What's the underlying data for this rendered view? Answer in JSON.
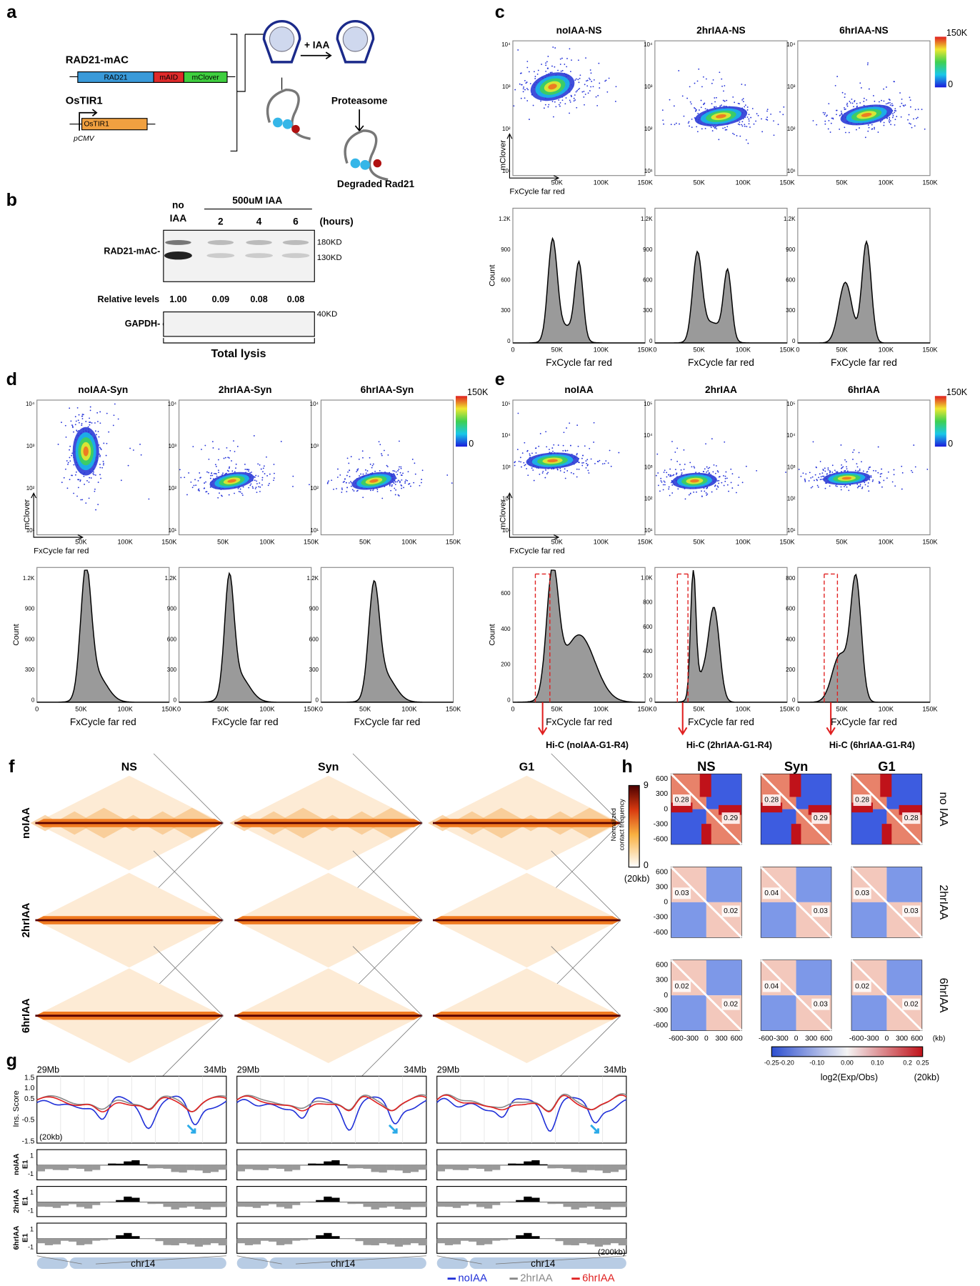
{
  "panel_a": {
    "label": "a",
    "construct": "RAD21-mAC",
    "segments": [
      "RAD21",
      "mAID",
      "mClover"
    ],
    "gene": "OsTIR1",
    "box": "OsTIR1",
    "promoter": "pCMV",
    "treatment": "+ IAA",
    "proteasome": "Proteasome",
    "result": "Degraded Rad21"
  },
  "panel_b": {
    "label": "b",
    "no_iaa": [
      "no",
      "IAA"
    ],
    "treatment": "500uM IAA",
    "times": [
      "2",
      "4",
      "6"
    ],
    "unit": "(hours)",
    "band_label": "RAD21-mAC-",
    "markers": [
      "180KD",
      "130KD"
    ],
    "relative_label": "Relative levels",
    "relative": [
      "1.00",
      "0.09",
      "0.08",
      "0.08"
    ],
    "control": "GAPDH-",
    "control_marker": "40KD",
    "footer": "Total lysis"
  },
  "panel_c": {
    "label": "c",
    "titles": [
      "noIAA-NS",
      "2hrIAA-NS",
      "6hrIAA-NS"
    ],
    "colorbar": [
      "150K",
      "0"
    ],
    "y_label": "mClover",
    "x_label": "FxCycle far red",
    "scatter_yticks": [
      "10⁴",
      "10³",
      "10²",
      "10¹"
    ],
    "scatter_xticks": [
      "50K",
      "100K",
      "150K"
    ],
    "hist_y_label": "Count",
    "hist_yticks": [
      [
        "0",
        "300",
        "600",
        "900",
        "1.2K"
      ],
      [
        "0",
        "300",
        "600",
        "900",
        "1.2K"
      ],
      [
        "0",
        "300",
        "600",
        "900",
        "1.2K"
      ]
    ],
    "hist_xticks": [
      "0",
      "50K",
      "100K",
      "150K"
    ],
    "hist_x_label": "FxCycle far red"
  },
  "panel_d": {
    "label": "d",
    "titles": [
      "noIAA-Syn",
      "2hrIAA-Syn",
      "6hrIAA-Syn"
    ],
    "colorbar": [
      "150K",
      "0"
    ],
    "y_label": "mClover",
    "x_label": "FxCycle far red",
    "scatter_yticks": [
      "10⁴",
      "10³",
      "10²",
      "10¹"
    ],
    "scatter_xticks": [
      "50K",
      "100K",
      "150K"
    ],
    "hist_y_label": "Count",
    "hist_yticks": [
      [
        "0",
        "300",
        "600",
        "900",
        "1.2K"
      ],
      [
        "0",
        "300",
        "600",
        "900",
        "1.2K"
      ],
      [
        "0",
        "300",
        "600",
        "900",
        "1.2K"
      ]
    ],
    "hist_xticks": [
      "0",
      "50K",
      "100K",
      "150K"
    ],
    "hist_x_label": "FxCycle far red"
  },
  "panel_e": {
    "label": "e",
    "titles": [
      "noIAA",
      "2hrIAA",
      "6hrIAA"
    ],
    "colorbar": [
      "150K",
      "0"
    ],
    "y_label": "mClover",
    "x_label": "FxCycle far red",
    "scatter_yticks": [
      "10⁵",
      "10⁴",
      "10³",
      "10²",
      "10¹"
    ],
    "scatter_xticks": [
      "50K",
      "100K",
      "150K"
    ],
    "hist_y_label": "Count",
    "hist_yticks": [
      [
        "0",
        "200",
        "400",
        "600"
      ],
      [
        "0",
        "200",
        "400",
        "600",
        "800",
        "1.0K"
      ],
      [
        "0",
        "200",
        "400",
        "600",
        "800"
      ]
    ],
    "hist_xticks": [
      "0",
      "50K",
      "100K",
      "150K"
    ],
    "hist_x_label": "FxCycle far red",
    "hic": [
      "Hi-C (noIAA-G1-R4)",
      "Hi-C (2hrIAA-G1-R4)",
      "Hi-C (6hrIAA-G1-R4)"
    ]
  },
  "panel_f": {
    "label": "f",
    "columns": [
      "NS",
      "Syn",
      "G1"
    ],
    "rows": [
      "noIAA",
      "2hrIAA",
      "6hrIAA"
    ],
    "colorbar_label": [
      "Normalized",
      "contact frequency"
    ],
    "colorbar": [
      "9",
      "0"
    ],
    "resolution": "(20kb)"
  },
  "panel_h": {
    "label": "h",
    "columns": [
      "NS",
      "Syn",
      "G1"
    ],
    "rows": [
      "no IAA",
      "2hrIAA",
      "6hrIAA"
    ],
    "scores": [
      [
        [
          "0.28",
          "0.29"
        ],
        [
          "0.28",
          "0.29"
        ],
        [
          "0.28",
          "0.28"
        ]
      ],
      [
        [
          "0.03",
          "0.02"
        ],
        [
          "0.04",
          "0.03"
        ],
        [
          "0.03",
          "0.03"
        ]
      ],
      [
        [
          "0.02",
          "0.02"
        ],
        [
          "0.04",
          "0.03"
        ],
        [
          "0.02",
          "0.02"
        ]
      ]
    ],
    "yticks": [
      "600",
      "300",
      "0",
      "-300",
      "-600"
    ],
    "xticks": [
      "-600",
      "-300",
      "0",
      "300",
      "600"
    ],
    "x_unit": "(kb)",
    "colorbar_ticks": [
      "-0.25",
      "-0.20",
      "-0.10",
      "0.00",
      "0.10",
      "0.2",
      "0.25"
    ],
    "colorbar_label": "log2(Exp/Obs)",
    "resolution": "(20kb)"
  },
  "panel_g": {
    "label": "g",
    "start": "29Mb",
    "end": "34Mb",
    "y_label": "Ins. Score",
    "yticks": [
      "1.5",
      "1.0",
      "0.5",
      "-0.5",
      "-1.5"
    ],
    "resolution": "(20kb)",
    "tracks": [
      [
        "noIAA",
        "E1"
      ],
      [
        "2hrIAA",
        "E1"
      ],
      [
        "6hrIAA",
        "E1"
      ]
    ],
    "track_ticks": [
      "1",
      "-1"
    ],
    "chromosome": "chr14",
    "track_resolution": "(200kb)",
    "legend": [
      {
        "name": "noIAA",
        "color": "#1f2fd8"
      },
      {
        "name": "2hrIAA",
        "color": "#888888"
      },
      {
        "name": "6hrIAA",
        "color": "#e02020"
      }
    ]
  }
}
